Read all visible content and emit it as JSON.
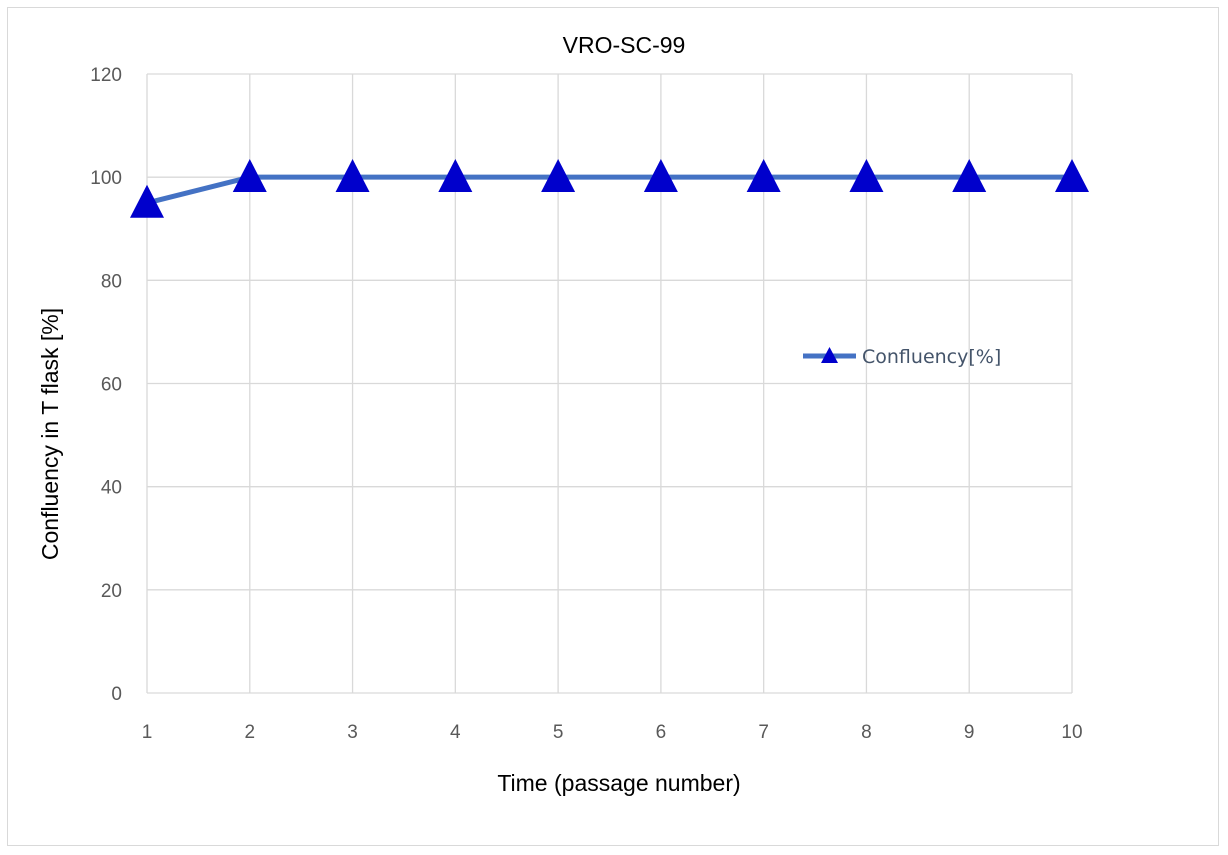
{
  "chart_data": {
    "type": "line",
    "title": "VRO-SC-99",
    "xlabel": "Time  (passage number)",
    "ylabel": "Confluency in T flask  [%]",
    "x": [
      1,
      2,
      3,
      4,
      5,
      6,
      7,
      8,
      9,
      10
    ],
    "ylim": [
      0,
      120
    ],
    "yticks": [
      0,
      20,
      40,
      60,
      80,
      100,
      120
    ],
    "grid": true,
    "legend_position": "right",
    "series": [
      {
        "name": "Confluency[%]",
        "values": [
          95,
          100,
          100,
          100,
          100,
          100,
          100,
          100,
          100,
          100
        ],
        "line_color": "#4472c4",
        "marker": "triangle",
        "marker_color": "#0000cc"
      }
    ]
  },
  "colors": {
    "legend_text": "#44546a"
  }
}
